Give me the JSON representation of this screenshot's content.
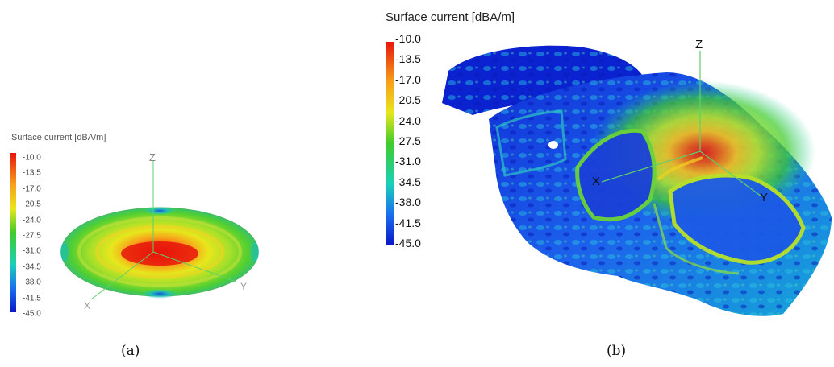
{
  "figure": {
    "panels": [
      {
        "caption": "(a)",
        "legend": {
          "title": "Surface current [dBA/m]",
          "ticks": [
            "-10.0",
            "-13.5",
            "-17.0",
            "-20.5",
            "-24.0",
            "-27.5",
            "-31.0",
            "-34.5",
            "-38.0",
            "-41.5",
            "-45.0"
          ]
        },
        "axes": {
          "x": "X",
          "y": "Y",
          "z": "Z"
        }
      },
      {
        "caption": "(b)",
        "legend": {
          "title": "Surface current [dBA/m]",
          "ticks": [
            "-10.0",
            "-13.5",
            "-17.0",
            "-20.5",
            "-24.0",
            "-27.5",
            "-31.0",
            "-34.5",
            "-38.0",
            "-41.5",
            "-45.0"
          ]
        },
        "axes": {
          "x": "X",
          "y": "Y",
          "z": "Z"
        }
      }
    ]
  },
  "colors": {
    "max": "#e8150c",
    "high": "#f7a11a",
    "mid_high": "#e8e61c",
    "mid": "#3fcc2a",
    "mid_low": "#19d0b8",
    "low": "#1a6ff0",
    "min": "#0a18c8",
    "axis": "#5ed06a"
  }
}
